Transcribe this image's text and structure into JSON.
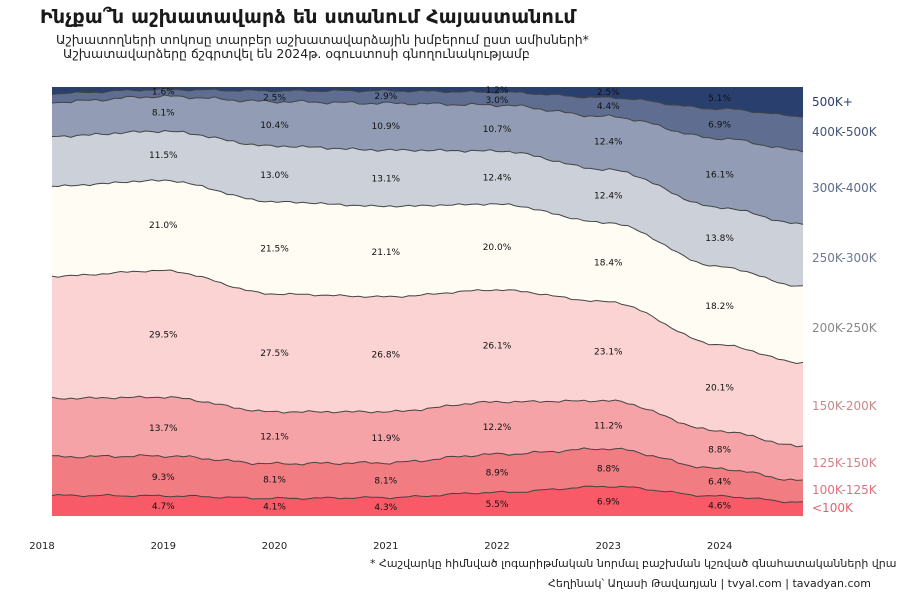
{
  "title": "Ինչքա՞ն աշխատավարձ են ստանում Հայաստանում",
  "subtitle_line1": "Աշխատողների տոկոսը տարբեր աշխատավարձային խմբերում ըստ ամիսների*",
  "subtitle_line2": "Աշխատավարձերը ճշգրտվել են 2024թ. օգուստոսի գնողունակությամբ",
  "footnote": "* Հաշվարկը հիմնված լոգարիթմական նորմալ բաշխման կշռված գնահատականների վրա",
  "credits": "Հեղինակ՝ Աղասի Թավադյան   |   tvyal.com   |   tavadyan.com",
  "colors": {
    "<100K": "#f95a68",
    "100K-125K": "#f17c82",
    "125K-150K": "#f6a3a8",
    "150K-200K": "#fbd3d3",
    "200K-250K": "#fffcf4",
    "250K-300K": "#cbd0d9",
    "300K-400K": "#929db5",
    "400K-500K": "#5e6d90",
    "500K+": "#29406f"
  },
  "chart_data": {
    "type": "area",
    "stacked": true,
    "normalized_percent": true,
    "x": [
      2018.0,
      2019.0,
      2020.0,
      2021.0,
      2022.0,
      2023.0,
      2024.0,
      2024.75
    ],
    "x_ticks": [
      "2018",
      "2019",
      "2020",
      "2021",
      "2022",
      "2023",
      "2024"
    ],
    "series": [
      {
        "name": "<100K",
        "values": [
          4.8,
          4.7,
          4.1,
          4.3,
          5.5,
          6.9,
          4.6,
          3.2
        ]
      },
      {
        "name": "100K-125K",
        "values": [
          9.0,
          9.3,
          8.1,
          8.1,
          8.9,
          8.8,
          6.4,
          5.0
        ]
      },
      {
        "name": "125K-150K",
        "values": [
          13.6,
          13.7,
          12.1,
          11.9,
          12.2,
          11.2,
          8.8,
          8.0
        ]
      },
      {
        "name": "150K-200K",
        "values": [
          28.5,
          29.5,
          27.5,
          26.8,
          26.1,
          23.1,
          20.1,
          19.5
        ]
      },
      {
        "name": "200K-250K",
        "values": [
          21.0,
          21.0,
          21.5,
          21.1,
          20.0,
          18.4,
          18.2,
          17.8
        ]
      },
      {
        "name": "250K-300K",
        "values": [
          11.6,
          11.5,
          13.0,
          13.1,
          12.4,
          12.4,
          13.8,
          14.5
        ]
      },
      {
        "name": "300K-400K",
        "values": [
          8.0,
          8.1,
          10.4,
          10.9,
          10.7,
          12.4,
          16.1,
          17.2
        ]
      },
      {
        "name": "400K-500K",
        "values": [
          2.0,
          1.6,
          2.5,
          2.9,
          3.0,
          4.4,
          6.9,
          8.0
        ]
      },
      {
        "name": "500K+",
        "values": [
          1.5,
          0.6,
          0.9,
          0.9,
          1.2,
          2.5,
          5.1,
          6.8
        ]
      }
    ],
    "labels": [
      {
        "series": "<100K",
        "x": 2019.0,
        "text": "4.7%"
      },
      {
        "series": "<100K",
        "x": 2020.0,
        "text": "4.1%"
      },
      {
        "series": "<100K",
        "x": 2021.0,
        "text": "4.3%"
      },
      {
        "series": "<100K",
        "x": 2022.0,
        "text": "5.5%"
      },
      {
        "series": "<100K",
        "x": 2023.0,
        "text": "6.9%"
      },
      {
        "series": "<100K",
        "x": 2024.0,
        "text": "4.6%"
      },
      {
        "series": "100K-125K",
        "x": 2019.0,
        "text": "9.3%"
      },
      {
        "series": "100K-125K",
        "x": 2020.0,
        "text": "8.1%"
      },
      {
        "series": "100K-125K",
        "x": 2021.0,
        "text": "8.1%"
      },
      {
        "series": "100K-125K",
        "x": 2022.0,
        "text": "8.9%"
      },
      {
        "series": "100K-125K",
        "x": 2023.0,
        "text": "8.8%"
      },
      {
        "series": "100K-125K",
        "x": 2024.0,
        "text": "6.4%"
      },
      {
        "series": "125K-150K",
        "x": 2019.0,
        "text": "13.7%"
      },
      {
        "series": "125K-150K",
        "x": 2020.0,
        "text": "12.1%"
      },
      {
        "series": "125K-150K",
        "x": 2021.0,
        "text": "11.9%"
      },
      {
        "series": "125K-150K",
        "x": 2022.0,
        "text": "12.2%"
      },
      {
        "series": "125K-150K",
        "x": 2023.0,
        "text": "11.2%"
      },
      {
        "series": "125K-150K",
        "x": 2024.0,
        "text": "8.8%"
      },
      {
        "series": "150K-200K",
        "x": 2019.0,
        "text": "29.5%"
      },
      {
        "series": "150K-200K",
        "x": 2020.0,
        "text": "27.5%"
      },
      {
        "series": "150K-200K",
        "x": 2021.0,
        "text": "26.8%"
      },
      {
        "series": "150K-200K",
        "x": 2022.0,
        "text": "26.1%"
      },
      {
        "series": "150K-200K",
        "x": 2023.0,
        "text": "23.1%"
      },
      {
        "series": "150K-200K",
        "x": 2024.0,
        "text": "20.1%"
      },
      {
        "series": "200K-250K",
        "x": 2019.0,
        "text": "21.0%"
      },
      {
        "series": "200K-250K",
        "x": 2020.0,
        "text": "21.5%"
      },
      {
        "series": "200K-250K",
        "x": 2021.0,
        "text": "21.1%"
      },
      {
        "series": "200K-250K",
        "x": 2022.0,
        "text": "20.0%"
      },
      {
        "series": "200K-250K",
        "x": 2023.0,
        "text": "18.4%"
      },
      {
        "series": "200K-250K",
        "x": 2024.0,
        "text": "18.2%"
      },
      {
        "series": "250K-300K",
        "x": 2019.0,
        "text": "11.5%"
      },
      {
        "series": "250K-300K",
        "x": 2020.0,
        "text": "13.0%"
      },
      {
        "series": "250K-300K",
        "x": 2021.0,
        "text": "13.1%"
      },
      {
        "series": "250K-300K",
        "x": 2022.0,
        "text": "12.4%"
      },
      {
        "series": "250K-300K",
        "x": 2023.0,
        "text": "12.4%"
      },
      {
        "series": "250K-300K",
        "x": 2024.0,
        "text": "13.8%"
      },
      {
        "series": "300K-400K",
        "x": 2019.0,
        "text": "8.1%"
      },
      {
        "series": "300K-400K",
        "x": 2020.0,
        "text": "10.4%"
      },
      {
        "series": "300K-400K",
        "x": 2021.0,
        "text": "10.9%"
      },
      {
        "series": "300K-400K",
        "x": 2022.0,
        "text": "10.7%"
      },
      {
        "series": "300K-400K",
        "x": 2023.0,
        "text": "12.4%"
      },
      {
        "series": "300K-400K",
        "x": 2024.0,
        "text": "16.1%"
      },
      {
        "series": "400K-500K",
        "x": 2019.0,
        "text": "1.6%"
      },
      {
        "series": "400K-500K",
        "x": 2020.0,
        "text": "2.5%"
      },
      {
        "series": "400K-500K",
        "x": 2021.0,
        "text": "2.9%"
      },
      {
        "series": "400K-500K",
        "x": 2022.0,
        "text": "3.0%"
      },
      {
        "series": "400K-500K",
        "x": 2023.0,
        "text": "4.4%"
      },
      {
        "series": "400K-500K",
        "x": 2024.0,
        "text": "6.9%"
      },
      {
        "series": "500K+",
        "x": 2022.0,
        "text": "1.2%"
      },
      {
        "series": "500K+",
        "x": 2023.0,
        "text": "2.5%"
      },
      {
        "series": "500K+",
        "x": 2024.0,
        "text": "5.1%"
      }
    ],
    "legend_placement": "right, inline at series end",
    "grid": false,
    "ylim": [
      0,
      100
    ]
  }
}
